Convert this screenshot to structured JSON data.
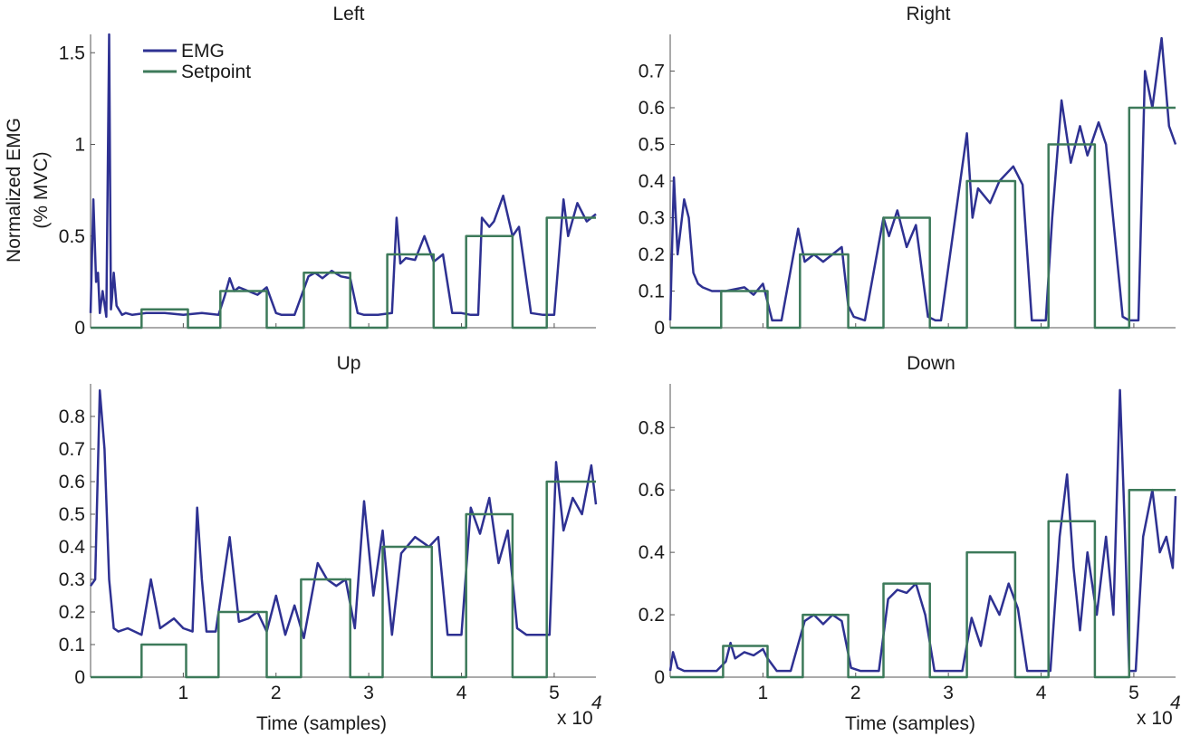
{
  "colors": {
    "emg": "#2e3192",
    "setpoint": "#3d7a5a",
    "axis": "#555555",
    "text": "#1a1a1a"
  },
  "legend": {
    "placement": "top-left",
    "entries": [
      "EMG",
      "Setpoint"
    ]
  },
  "shared": {
    "ylabel_line1": "Normalized EMG",
    "ylabel_line2": "(% MVC)",
    "xlabel": "Time (samples)",
    "x_exponent_label": "x 10",
    "x_exponent_power": "4"
  },
  "chart_data": [
    {
      "type": "line",
      "title": "Left",
      "xlim": [
        0,
        5.45
      ],
      "ylim": [
        0,
        1.6
      ],
      "yticks": [
        0,
        0.5,
        1,
        1.5
      ],
      "yticklabels": [
        "0",
        "0.5",
        "1",
        "1.5"
      ],
      "xticks": [
        1,
        2,
        3,
        4,
        5
      ],
      "xticklabels": [],
      "series": [
        {
          "name": "EMG",
          "x": [
            0,
            0.03,
            0.06,
            0.08,
            0.1,
            0.13,
            0.17,
            0.2,
            0.22,
            0.23,
            0.25,
            0.28,
            0.34,
            0.38,
            0.45,
            0.6,
            0.8,
            1.0,
            1.2,
            1.38,
            1.45,
            1.5,
            1.55,
            1.6,
            1.7,
            1.8,
            1.9,
            2.0,
            2.06,
            2.2,
            2.35,
            2.42,
            2.5,
            2.6,
            2.7,
            2.8,
            2.88,
            2.95,
            3.1,
            3.25,
            3.3,
            3.34,
            3.4,
            3.5,
            3.6,
            3.7,
            3.8,
            3.9,
            4.0,
            4.1,
            4.18,
            4.22,
            4.3,
            4.35,
            4.45,
            4.55,
            4.62,
            4.75,
            4.88,
            4.95,
            5.0,
            5.1,
            5.15,
            5.25,
            5.35,
            5.45
          ],
          "values": [
            0.08,
            0.7,
            0.25,
            0.3,
            0.08,
            0.2,
            0.06,
            1.6,
            0.1,
            0.15,
            0.3,
            0.12,
            0.07,
            0.08,
            0.07,
            0.08,
            0.08,
            0.07,
            0.08,
            0.07,
            0.18,
            0.27,
            0.2,
            0.22,
            0.2,
            0.18,
            0.22,
            0.08,
            0.07,
            0.07,
            0.28,
            0.3,
            0.27,
            0.31,
            0.28,
            0.27,
            0.08,
            0.07,
            0.07,
            0.08,
            0.6,
            0.35,
            0.38,
            0.37,
            0.5,
            0.36,
            0.4,
            0.08,
            0.08,
            0.07,
            0.07,
            0.6,
            0.55,
            0.58,
            0.72,
            0.5,
            0.55,
            0.08,
            0.07,
            0.07,
            0.07,
            0.7,
            0.5,
            0.68,
            0.58,
            0.62
          ]
        },
        {
          "name": "Setpoint",
          "x": [
            0,
            0.55,
            0.55,
            1.05,
            1.05,
            1.4,
            1.4,
            1.9,
            1.9,
            2.3,
            2.3,
            2.8,
            2.8,
            3.2,
            3.2,
            3.7,
            3.7,
            4.05,
            4.05,
            4.55,
            4.55,
            4.92,
            4.92,
            5.45
          ],
          "values": [
            0,
            0,
            0.1,
            0.1,
            0,
            0,
            0.2,
            0.2,
            0,
            0,
            0.3,
            0.3,
            0,
            0,
            0.4,
            0.4,
            0,
            0,
            0.5,
            0.5,
            0,
            0,
            0.6,
            0.6
          ]
        }
      ]
    },
    {
      "type": "line",
      "title": "Right",
      "xlim": [
        0,
        5.45
      ],
      "ylim": [
        0,
        0.8
      ],
      "yticks": [
        0,
        0.1,
        0.2,
        0.3,
        0.4,
        0.5,
        0.6,
        0.7
      ],
      "yticklabels": [
        "0",
        "0.1",
        "0.2",
        "0.3",
        "0.4",
        "0.5",
        "0.6",
        "0.7"
      ],
      "xticks": [
        1,
        2,
        3,
        4,
        5
      ],
      "xticklabels": [],
      "series": [
        {
          "name": "EMG",
          "x": [
            0,
            0.04,
            0.08,
            0.15,
            0.2,
            0.25,
            0.3,
            0.35,
            0.45,
            0.6,
            0.8,
            0.9,
            1.0,
            1.1,
            1.2,
            1.38,
            1.45,
            1.55,
            1.65,
            1.75,
            1.85,
            1.92,
            1.98,
            2.1,
            2.3,
            2.36,
            2.45,
            2.55,
            2.65,
            2.78,
            2.86,
            2.92,
            3.2,
            3.26,
            3.32,
            3.45,
            3.55,
            3.7,
            3.8,
            3.9,
            4.05,
            4.12,
            4.22,
            4.32,
            4.42,
            4.5,
            4.62,
            4.7,
            4.88,
            4.95,
            5.05,
            5.12,
            5.2,
            5.3,
            5.38,
            5.45
          ],
          "values": [
            0.02,
            0.41,
            0.2,
            0.35,
            0.3,
            0.15,
            0.12,
            0.11,
            0.1,
            0.1,
            0.11,
            0.09,
            0.12,
            0.02,
            0.02,
            0.27,
            0.18,
            0.2,
            0.18,
            0.2,
            0.22,
            0.06,
            0.03,
            0.02,
            0.3,
            0.25,
            0.32,
            0.22,
            0.28,
            0.03,
            0.02,
            0.02,
            0.53,
            0.3,
            0.38,
            0.34,
            0.4,
            0.44,
            0.39,
            0.02,
            0.02,
            0.3,
            0.62,
            0.45,
            0.55,
            0.47,
            0.56,
            0.5,
            0.03,
            0.02,
            0.02,
            0.7,
            0.6,
            0.79,
            0.55,
            0.5
          ]
        },
        {
          "name": "Setpoint",
          "x": [
            0,
            0.55,
            0.55,
            1.05,
            1.05,
            1.4,
            1.4,
            1.92,
            1.92,
            2.3,
            2.3,
            2.8,
            2.8,
            3.2,
            3.2,
            3.72,
            3.72,
            4.08,
            4.08,
            4.58,
            4.58,
            4.95,
            4.95,
            5.45
          ],
          "values": [
            0,
            0,
            0.1,
            0.1,
            0,
            0,
            0.2,
            0.2,
            0,
            0,
            0.3,
            0.3,
            0,
            0,
            0.4,
            0.4,
            0,
            0,
            0.5,
            0.5,
            0,
            0,
            0.6,
            0.6
          ]
        }
      ]
    },
    {
      "type": "line",
      "title": "Up",
      "xlim": [
        0,
        5.45
      ],
      "ylim": [
        0,
        0.9
      ],
      "yticks": [
        0,
        0.1,
        0.2,
        0.3,
        0.4,
        0.5,
        0.6,
        0.7,
        0.8
      ],
      "yticklabels": [
        "0",
        "0.1",
        "0.2",
        "0.3",
        "0.4",
        "0.5",
        "0.6",
        "0.7",
        "0.8"
      ],
      "xticks": [
        1,
        2,
        3,
        4,
        5
      ],
      "xticklabels": [
        "1",
        "2",
        "3",
        "4",
        "5"
      ],
      "series": [
        {
          "name": "EMG",
          "x": [
            0,
            0.05,
            0.1,
            0.15,
            0.2,
            0.25,
            0.3,
            0.4,
            0.55,
            0.65,
            0.75,
            0.9,
            1.0,
            1.1,
            1.15,
            1.2,
            1.25,
            1.35,
            1.5,
            1.6,
            1.7,
            1.8,
            1.9,
            2.0,
            2.1,
            2.2,
            2.3,
            2.45,
            2.55,
            2.65,
            2.75,
            2.85,
            2.95,
            3.05,
            3.15,
            3.25,
            3.35,
            3.5,
            3.65,
            3.75,
            3.85,
            4.0,
            4.1,
            4.2,
            4.3,
            4.4,
            4.5,
            4.6,
            4.7,
            4.85,
            4.95,
            5.02,
            5.1,
            5.2,
            5.3,
            5.4,
            5.45
          ],
          "values": [
            0.28,
            0.3,
            0.88,
            0.7,
            0.3,
            0.15,
            0.14,
            0.15,
            0.13,
            0.3,
            0.15,
            0.18,
            0.15,
            0.14,
            0.52,
            0.3,
            0.14,
            0.14,
            0.43,
            0.17,
            0.18,
            0.2,
            0.14,
            0.25,
            0.13,
            0.22,
            0.12,
            0.35,
            0.3,
            0.28,
            0.3,
            0.15,
            0.54,
            0.25,
            0.45,
            0.13,
            0.38,
            0.43,
            0.4,
            0.43,
            0.13,
            0.13,
            0.52,
            0.44,
            0.55,
            0.35,
            0.45,
            0.15,
            0.13,
            0.13,
            0.13,
            0.66,
            0.45,
            0.55,
            0.5,
            0.65,
            0.53
          ]
        },
        {
          "name": "Setpoint",
          "x": [
            0,
            0.55,
            0.55,
            1.03,
            1.03,
            1.38,
            1.38,
            1.9,
            1.9,
            2.27,
            2.27,
            2.8,
            2.8,
            3.15,
            3.15,
            3.68,
            3.68,
            4.05,
            4.05,
            4.55,
            4.55,
            4.92,
            4.92,
            5.45
          ],
          "values": [
            0,
            0,
            0.1,
            0.1,
            0,
            0,
            0.2,
            0.2,
            0,
            0,
            0.3,
            0.3,
            0,
            0,
            0.4,
            0.4,
            0,
            0,
            0.5,
            0.5,
            0,
            0,
            0.6,
            0.6
          ]
        }
      ]
    },
    {
      "type": "line",
      "title": "Down",
      "xlim": [
        0,
        5.45
      ],
      "ylim": [
        0,
        0.94
      ],
      "yticks": [
        0,
        0.2,
        0.4,
        0.6,
        0.8
      ],
      "yticklabels": [
        "0",
        "0.2",
        "0.4",
        "0.6",
        "0.8"
      ],
      "xticks": [
        1,
        2,
        3,
        4,
        5
      ],
      "xticklabels": [
        "1",
        "2",
        "3",
        "4",
        "5"
      ],
      "series": [
        {
          "name": "EMG",
          "x": [
            0,
            0.03,
            0.08,
            0.15,
            0.3,
            0.5,
            0.6,
            0.65,
            0.7,
            0.8,
            0.9,
            1.0,
            1.05,
            1.15,
            1.3,
            1.45,
            1.55,
            1.65,
            1.75,
            1.85,
            1.95,
            2.05,
            2.25,
            2.35,
            2.45,
            2.55,
            2.65,
            2.75,
            2.85,
            3.0,
            3.15,
            3.25,
            3.35,
            3.45,
            3.55,
            3.65,
            3.75,
            3.85,
            4.0,
            4.1,
            4.2,
            4.28,
            4.35,
            4.42,
            4.5,
            4.6,
            4.7,
            4.78,
            4.85,
            4.9,
            4.95,
            5.02,
            5.1,
            5.2,
            5.28,
            5.35,
            5.42,
            5.45
          ],
          "values": [
            0.02,
            0.08,
            0.03,
            0.02,
            0.02,
            0.02,
            0.05,
            0.11,
            0.06,
            0.08,
            0.07,
            0.09,
            0.06,
            0.02,
            0.02,
            0.18,
            0.2,
            0.17,
            0.2,
            0.18,
            0.03,
            0.02,
            0.02,
            0.25,
            0.28,
            0.27,
            0.3,
            0.2,
            0.02,
            0.02,
            0.02,
            0.19,
            0.1,
            0.26,
            0.2,
            0.3,
            0.22,
            0.02,
            0.02,
            0.02,
            0.45,
            0.65,
            0.35,
            0.15,
            0.4,
            0.2,
            0.45,
            0.2,
            0.92,
            0.5,
            0.02,
            0.02,
            0.45,
            0.6,
            0.4,
            0.45,
            0.35,
            0.58
          ]
        },
        {
          "name": "Setpoint",
          "x": [
            0,
            0.57,
            0.57,
            1.05,
            1.05,
            1.43,
            1.43,
            1.92,
            1.92,
            2.3,
            2.3,
            2.8,
            2.8,
            3.2,
            3.2,
            3.72,
            3.72,
            4.08,
            4.08,
            4.58,
            4.58,
            4.95,
            4.95,
            5.45
          ],
          "values": [
            0,
            0,
            0.1,
            0.1,
            0,
            0,
            0.2,
            0.2,
            0,
            0,
            0.3,
            0.3,
            0,
            0,
            0.4,
            0.4,
            0,
            0,
            0.5,
            0.5,
            0,
            0,
            0.6,
            0.6
          ]
        }
      ]
    }
  ]
}
